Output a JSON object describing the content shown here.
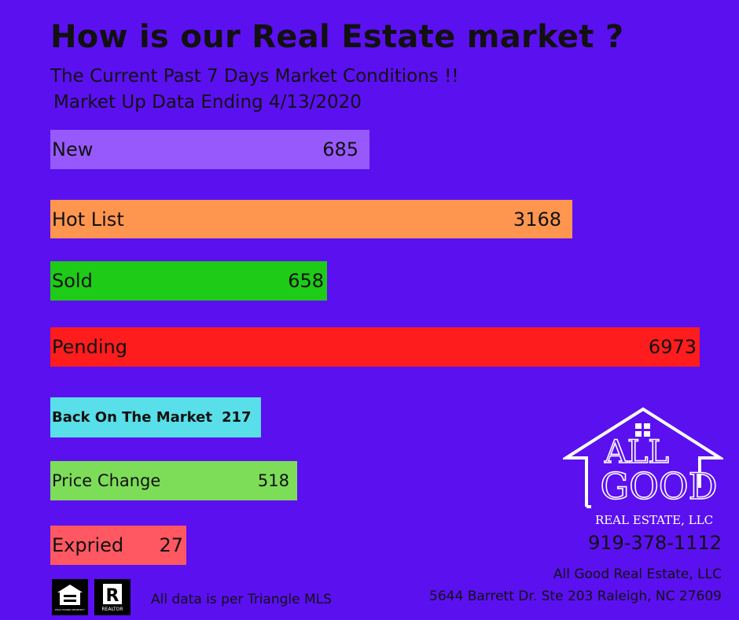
{
  "header": {
    "title": "How is our Real Estate market ?",
    "subtitle": "The Current Past 7 Days Market Conditions !!",
    "dateline": "Market Up Data Ending  4/13/2020"
  },
  "chart_data": {
    "type": "bar",
    "orientation": "horizontal",
    "categories": [
      "New",
      "Hot List",
      "Sold",
      "Pending",
      "Back On The Market",
      "Price Change",
      "Expried"
    ],
    "values": [
      685,
      3168,
      658,
      6973,
      217,
      518,
      27
    ],
    "value_labels": [
      "685",
      "3168",
      "658",
      "6973",
      "217",
      "518",
      "27"
    ],
    "colors": [
      "#9759fc",
      "#ff9650",
      "#1ecb17",
      "#ff1c1c",
      "#58dfe9",
      "#7ddd59",
      "#ff5862"
    ],
    "title": "",
    "xlabel": "",
    "ylabel": ""
  },
  "logo": {
    "line1": "ALL",
    "line2": "GOOD",
    "line3": "REAL ESTATE, LLC"
  },
  "contact": {
    "phone": "919-378-1112",
    "company": "All  Good Real Estate, LLC",
    "address": "5644 Barrett Dr. Ste 203  Raleigh, NC  27609"
  },
  "footer": {
    "note": "All data is per Triangle MLS",
    "eho_text": "EQUAL HOUSING OPPORTUNITY",
    "realtor_letter": "R",
    "realtor_text": "REALTOR"
  },
  "icons": {
    "equal_housing": "equal-housing-opportunity-icon",
    "realtor": "realtor-r-icon",
    "logo_house": "house-outline-icon"
  }
}
